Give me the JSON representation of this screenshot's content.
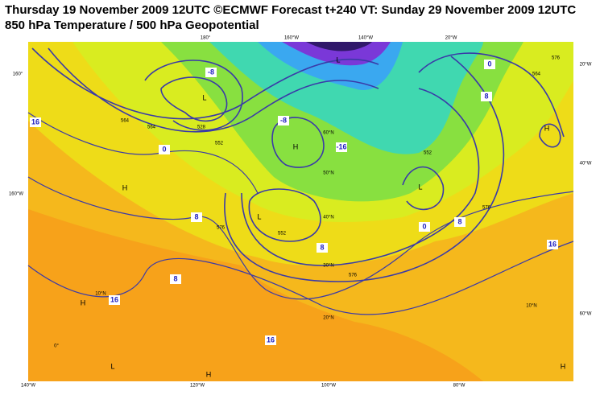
{
  "header": {
    "title": "Thursday 19 November 2009 12UTC ©ECMWF Forecast t+240 VT: Sunday 29 November 2009 12UTC",
    "subtitle": "850 hPa Temperature / 500 hPa Geopotential"
  },
  "map": {
    "pressure_centers": [
      "L",
      "H",
      "L",
      "H",
      "H",
      "H",
      "L",
      "H",
      "L",
      "H",
      "L"
    ],
    "longitude_labels": [
      "140°W",
      "120°W",
      "100°W",
      "80°W",
      "180°",
      "160°W",
      "140°W",
      "20°W",
      "20°W",
      "40°W",
      "60°W",
      "160°",
      "160°W"
    ],
    "latitude_labels": [
      "60°N",
      "50°N",
      "40°N",
      "30°N",
      "20°N",
      "10°N",
      "0°",
      "10°N"
    ],
    "temperature_labels": [
      "16",
      "0",
      "8",
      "8",
      "16",
      "16",
      "8",
      "0",
      "8",
      "16",
      "8",
      "0",
      "-8",
      "-8",
      "-16"
    ],
    "geopotential_labels": [
      "576",
      "552",
      "576",
      "564",
      "552",
      "528",
      "564",
      "552",
      "576",
      "564",
      "576"
    ]
  }
}
